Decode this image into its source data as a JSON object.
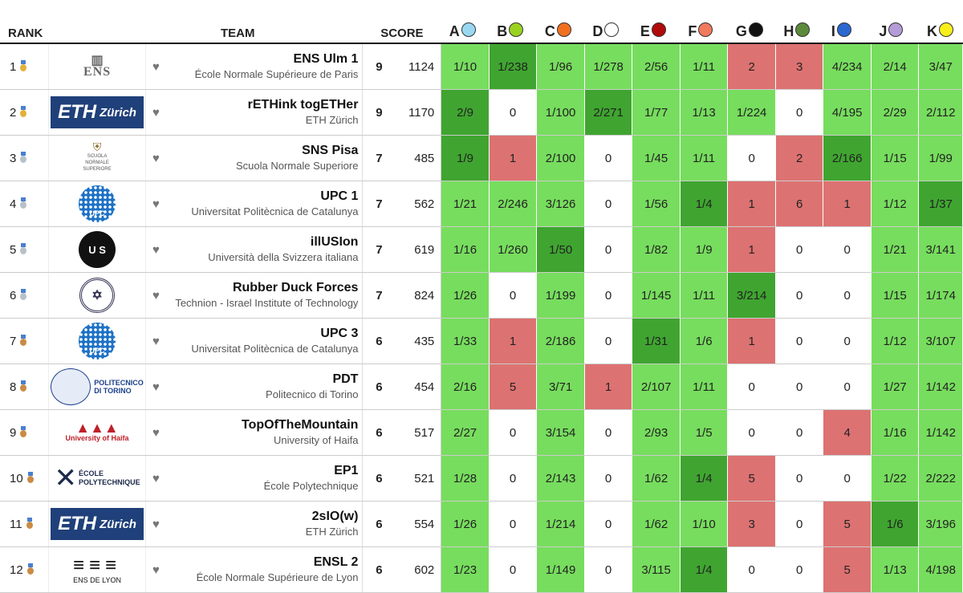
{
  "header": {
    "rank": "RANK",
    "team": "TEAM",
    "score": "SCORE",
    "problems": [
      {
        "letter": "A",
        "color": "#9ad8f2"
      },
      {
        "letter": "B",
        "color": "#9ad21f"
      },
      {
        "letter": "C",
        "color": "#f07020"
      },
      {
        "letter": "D",
        "color": "#ffffff"
      },
      {
        "letter": "E",
        "color": "#b00a0a"
      },
      {
        "letter": "F",
        "color": "#f07a5e"
      },
      {
        "letter": "G",
        "color": "#111111"
      },
      {
        "letter": "H",
        "color": "#5c8a3c"
      },
      {
        "letter": "I",
        "color": "#2a67d0"
      },
      {
        "letter": "J",
        "color": "#b59bd8"
      },
      {
        "letter": "K",
        "color": "#f8ee1c"
      }
    ]
  },
  "rows": [
    {
      "rank": "1",
      "medal": "gold",
      "logo": "ENS",
      "name": "ENS Ulm 1",
      "uni": "École Normale Supérieure de Paris",
      "solved": "9",
      "penalty": "1124",
      "cells": [
        [
          "1/10",
          "s"
        ],
        [
          "1/238",
          "f"
        ],
        [
          "1/96",
          "s"
        ],
        [
          "1/278",
          "s"
        ],
        [
          "2/56",
          "s"
        ],
        [
          "1/11",
          "s"
        ],
        [
          "2",
          "x"
        ],
        [
          "3",
          "x"
        ],
        [
          "4/234",
          "s"
        ],
        [
          "2/14",
          "s"
        ],
        [
          "3/47",
          "s"
        ]
      ]
    },
    {
      "rank": "2",
      "medal": "gold",
      "logo": "ETH Zürich",
      "name": "rETHink togETHer",
      "uni": "ETH Zürich",
      "solved": "9",
      "penalty": "1170",
      "cells": [
        [
          "2/9",
          "f"
        ],
        [
          "0",
          "n"
        ],
        [
          "1/100",
          "s"
        ],
        [
          "2/271",
          "f"
        ],
        [
          "1/77",
          "s"
        ],
        [
          "1/13",
          "s"
        ],
        [
          "1/224",
          "s"
        ],
        [
          "0",
          "n"
        ],
        [
          "4/195",
          "s"
        ],
        [
          "2/29",
          "s"
        ],
        [
          "2/112",
          "s"
        ]
      ]
    },
    {
      "rank": "3",
      "medal": "silver",
      "logo": "SCUOLA NORMALE SUPERIORE",
      "name": "SNS Pisa",
      "uni": "Scuola Normale Superiore",
      "solved": "7",
      "penalty": "485",
      "cells": [
        [
          "1/9",
          "f"
        ],
        [
          "1",
          "x"
        ],
        [
          "2/100",
          "s"
        ],
        [
          "0",
          "n"
        ],
        [
          "1/45",
          "s"
        ],
        [
          "1/11",
          "s"
        ],
        [
          "0",
          "n"
        ],
        [
          "2",
          "x"
        ],
        [
          "2/166",
          "f"
        ],
        [
          "1/15",
          "s"
        ],
        [
          "1/99",
          "s"
        ]
      ]
    },
    {
      "rank": "4",
      "medal": "silver",
      "logo": "UPC",
      "name": "UPC 1",
      "uni": "Universitat Politècnica de Catalunya",
      "solved": "7",
      "penalty": "562",
      "cells": [
        [
          "1/21",
          "s"
        ],
        [
          "2/246",
          "s"
        ],
        [
          "3/126",
          "s"
        ],
        [
          "0",
          "n"
        ],
        [
          "1/56",
          "s"
        ],
        [
          "1/4",
          "f"
        ],
        [
          "1",
          "x"
        ],
        [
          "6",
          "x"
        ],
        [
          "1",
          "x"
        ],
        [
          "1/12",
          "s"
        ],
        [
          "1/37",
          "f"
        ]
      ]
    },
    {
      "rank": "5",
      "medal": "silver",
      "logo": "USI",
      "name": "illUSIon",
      "uni": "Università della Svizzera italiana",
      "solved": "7",
      "penalty": "619",
      "cells": [
        [
          "1/16",
          "s"
        ],
        [
          "1/260",
          "s"
        ],
        [
          "1/50",
          "f"
        ],
        [
          "0",
          "n"
        ],
        [
          "1/82",
          "s"
        ],
        [
          "1/9",
          "s"
        ],
        [
          "1",
          "x"
        ],
        [
          "0",
          "n"
        ],
        [
          "0",
          "n"
        ],
        [
          "1/21",
          "s"
        ],
        [
          "3/141",
          "s"
        ]
      ]
    },
    {
      "rank": "6",
      "medal": "silver",
      "logo": "Technion",
      "name": "Rubber Duck Forces",
      "uni": "Technion - Israel Institute of Technology",
      "solved": "7",
      "penalty": "824",
      "cells": [
        [
          "1/26",
          "s"
        ],
        [
          "0",
          "n"
        ],
        [
          "1/199",
          "s"
        ],
        [
          "0",
          "n"
        ],
        [
          "1/145",
          "s"
        ],
        [
          "1/11",
          "s"
        ],
        [
          "3/214",
          "f"
        ],
        [
          "0",
          "n"
        ],
        [
          "0",
          "n"
        ],
        [
          "1/15",
          "s"
        ],
        [
          "1/174",
          "s"
        ]
      ]
    },
    {
      "rank": "7",
      "medal": "bronze",
      "logo": "UPC",
      "name": "UPC 3",
      "uni": "Universitat Politècnica de Catalunya",
      "solved": "6",
      "penalty": "435",
      "cells": [
        [
          "1/33",
          "s"
        ],
        [
          "1",
          "x"
        ],
        [
          "2/186",
          "s"
        ],
        [
          "0",
          "n"
        ],
        [
          "1/31",
          "f"
        ],
        [
          "1/6",
          "s"
        ],
        [
          "1",
          "x"
        ],
        [
          "0",
          "n"
        ],
        [
          "0",
          "n"
        ],
        [
          "1/12",
          "s"
        ],
        [
          "3/107",
          "s"
        ]
      ]
    },
    {
      "rank": "8",
      "medal": "bronze",
      "logo": "POLITECNICO DI TORINO",
      "name": "PDT",
      "uni": "Politecnico di Torino",
      "solved": "6",
      "penalty": "454",
      "cells": [
        [
          "2/16",
          "s"
        ],
        [
          "5",
          "x"
        ],
        [
          "3/71",
          "s"
        ],
        [
          "1",
          "x"
        ],
        [
          "2/107",
          "s"
        ],
        [
          "1/11",
          "s"
        ],
        [
          "0",
          "n"
        ],
        [
          "0",
          "n"
        ],
        [
          "0",
          "n"
        ],
        [
          "1/27",
          "s"
        ],
        [
          "1/142",
          "s"
        ]
      ]
    },
    {
      "rank": "9",
      "medal": "bronze",
      "logo": "University of Haifa",
      "name": "TopOfTheMountain",
      "uni": "University of Haifa",
      "solved": "6",
      "penalty": "517",
      "cells": [
        [
          "2/27",
          "s"
        ],
        [
          "0",
          "n"
        ],
        [
          "3/154",
          "s"
        ],
        [
          "0",
          "n"
        ],
        [
          "2/93",
          "s"
        ],
        [
          "1/5",
          "s"
        ],
        [
          "0",
          "n"
        ],
        [
          "0",
          "n"
        ],
        [
          "4",
          "x"
        ],
        [
          "1/16",
          "s"
        ],
        [
          "1/142",
          "s"
        ]
      ]
    },
    {
      "rank": "10",
      "medal": "bronze",
      "logo": "ÉCOLE POLYTECHNIQUE",
      "name": "EP1",
      "uni": "École Polytechnique",
      "solved": "6",
      "penalty": "521",
      "cells": [
        [
          "1/28",
          "s"
        ],
        [
          "0",
          "n"
        ],
        [
          "2/143",
          "s"
        ],
        [
          "0",
          "n"
        ],
        [
          "1/62",
          "s"
        ],
        [
          "1/4",
          "f"
        ],
        [
          "5",
          "x"
        ],
        [
          "0",
          "n"
        ],
        [
          "0",
          "n"
        ],
        [
          "1/22",
          "s"
        ],
        [
          "2/222",
          "s"
        ]
      ]
    },
    {
      "rank": "11",
      "medal": "bronze",
      "logo": "ETH Zürich",
      "name": "2sIO(w)",
      "uni": "ETH Zürich",
      "solved": "6",
      "penalty": "554",
      "cells": [
        [
          "1/26",
          "s"
        ],
        [
          "0",
          "n"
        ],
        [
          "1/214",
          "s"
        ],
        [
          "0",
          "n"
        ],
        [
          "1/62",
          "s"
        ],
        [
          "1/10",
          "s"
        ],
        [
          "3",
          "x"
        ],
        [
          "0",
          "n"
        ],
        [
          "5",
          "x"
        ],
        [
          "1/6",
          "f"
        ],
        [
          "3/196",
          "s"
        ]
      ]
    },
    {
      "rank": "12",
      "medal": "bronze",
      "logo": "ENS DE LYON",
      "name": "ENSL 2",
      "uni": "École Normale Supérieure de Lyon",
      "solved": "6",
      "penalty": "602",
      "cells": [
        [
          "1/23",
          "s"
        ],
        [
          "0",
          "n"
        ],
        [
          "1/149",
          "s"
        ],
        [
          "0",
          "n"
        ],
        [
          "3/115",
          "s"
        ],
        [
          "1/4",
          "f"
        ],
        [
          "0",
          "n"
        ],
        [
          "0",
          "n"
        ],
        [
          "5",
          "x"
        ],
        [
          "1/13",
          "s"
        ],
        [
          "4/198",
          "s"
        ]
      ]
    }
  ]
}
